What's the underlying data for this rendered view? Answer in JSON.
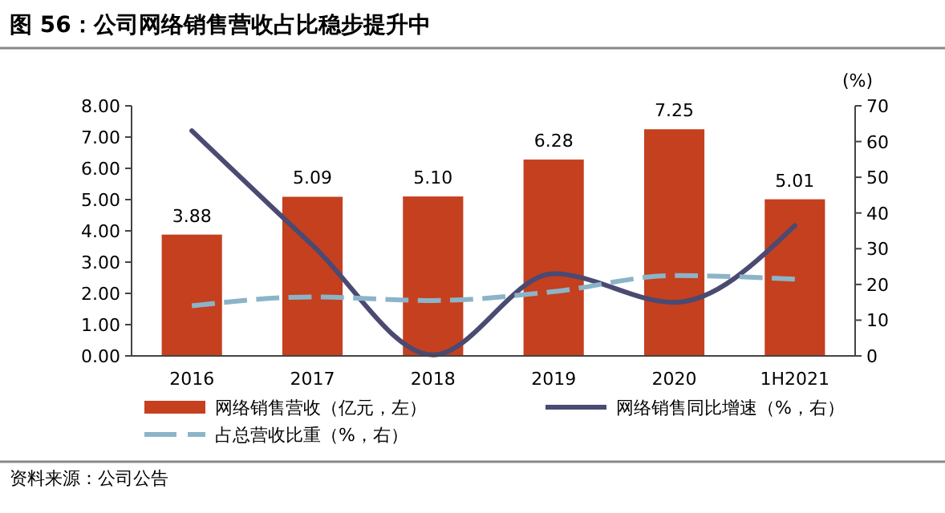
{
  "chart_data": {
    "type": "bar",
    "title": "图 56：公司网络销售营收占比稳步提升中",
    "categories": [
      "2016",
      "2017",
      "2018",
      "2019",
      "2020",
      "1H2021"
    ],
    "series": [
      {
        "name": "网络销售营收（亿元，左）",
        "color": "#c5401f",
        "values": [
          3.88,
          5.09,
          5.1,
          6.28,
          7.25,
          5.01
        ],
        "value_labels": [
          "3.88",
          "5.09",
          "5.10",
          "6.28",
          "7.25",
          "5.01"
        ]
      },
      {
        "name": "网络销售同比增速（%，右）",
        "type": "line",
        "axis": "y2",
        "color": "#4a4a72",
        "line_style": "solid",
        "values": [
          63,
          31,
          0.3,
          23,
          15,
          36.5
        ]
      },
      {
        "name": "占总营收比重（%，右）",
        "type": "line",
        "axis": "y2",
        "color": "#8cb4c9",
        "line_style": "dashed",
        "values": [
          14,
          16.5,
          15.5,
          18,
          22.5,
          21.5
        ]
      }
    ],
    "ylim": [
      0,
      8
    ],
    "yticks": [
      {
        "value": 0,
        "label": "0.00"
      },
      {
        "value": 1,
        "label": "1.00"
      },
      {
        "value": 2,
        "label": "2.00"
      },
      {
        "value": 3,
        "label": "3.00"
      },
      {
        "value": 4,
        "label": "4.00"
      },
      {
        "value": 5,
        "label": "5.00"
      },
      {
        "value": 6,
        "label": "6.00"
      },
      {
        "value": 7,
        "label": "7.00"
      },
      {
        "value": 8,
        "label": "8.00"
      }
    ],
    "y2lim": [
      0,
      70
    ],
    "y2ticks": [
      0,
      10,
      20,
      30,
      40,
      50,
      60,
      70
    ],
    "y2label": "(%)",
    "grid": false,
    "legend": "bottom",
    "annotations": [
      "资料来源：公司公告"
    ]
  }
}
